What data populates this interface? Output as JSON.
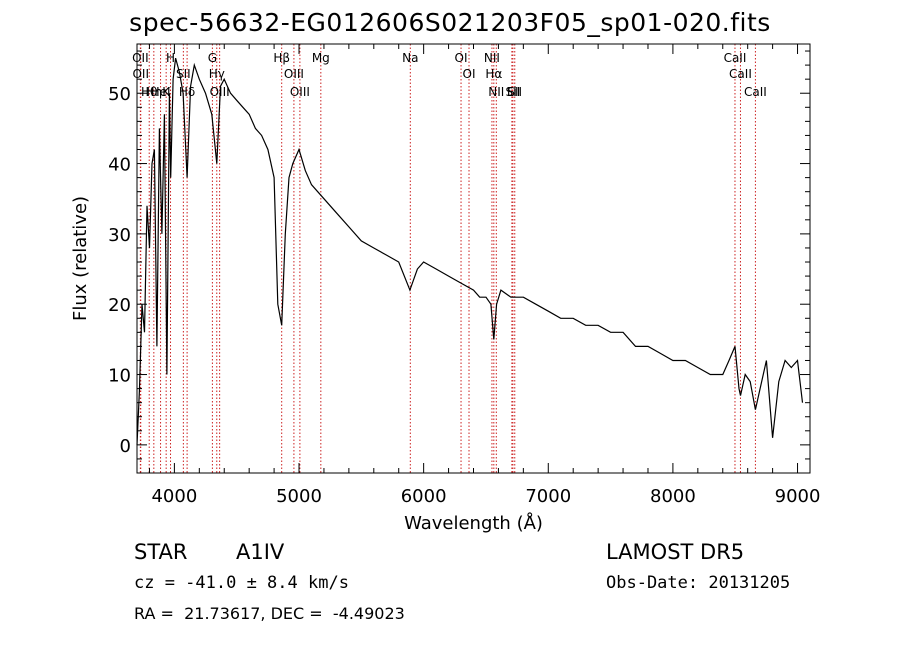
{
  "title": "spec-56632-EG012606S021203F05_sp01-020.fits",
  "info": {
    "classification": "STAR",
    "subclass": "A1IV",
    "survey": "LAMOST DR5",
    "cz": "cz = -41.0 ± 8.4 km/s",
    "obs_date": "Obs-Date: 20131205",
    "coords": "RA =  21.73617, DEC =  -4.49023"
  },
  "colors": {
    "spectrum": "#000000",
    "lines": "#cc2222",
    "axes": "#000000"
  },
  "chart_data": {
    "type": "line",
    "title": "spec-56632-EG012606S021203F05_sp01-020.fits",
    "xlabel": "Wavelength (Å)",
    "ylabel": "Flux (relative)",
    "xlim": [
      3700,
      9100
    ],
    "ylim": [
      -4,
      57
    ],
    "xticks": [
      4000,
      5000,
      6000,
      7000,
      8000,
      9000
    ],
    "yticks": [
      0,
      10,
      20,
      30,
      40,
      50
    ],
    "grid": false,
    "series": [
      {
        "x": [
          3700,
          3720,
          3740,
          3760,
          3780,
          3800,
          3820,
          3840,
          3860,
          3880,
          3900,
          3920,
          3940,
          3960,
          3970,
          3990,
          4010,
          4040,
          4070,
          4102,
          4130,
          4160,
          4200,
          4250,
          4300,
          4340,
          4370,
          4400,
          4450,
          4500,
          4550,
          4600,
          4650,
          4700,
          4750,
          4800,
          4830,
          4861,
          4890,
          4920,
          4950,
          5000,
          5050,
          5100,
          5150,
          5200,
          5300,
          5400,
          5500,
          5600,
          5700,
          5800,
          5890,
          5950,
          6000,
          6100,
          6200,
          6300,
          6400,
          6450,
          6500,
          6540,
          6563,
          6585,
          6620,
          6700,
          6800,
          6900,
          7000,
          7100,
          7200,
          7300,
          7400,
          7500,
          7600,
          7700,
          7800,
          7900,
          8000,
          8100,
          8200,
          8300,
          8400,
          8450,
          8498,
          8530,
          8542,
          8580,
          8620,
          8662,
          8700,
          8750,
          8800,
          8850,
          8900,
          8950,
          9000,
          9040
        ],
        "y": [
          0,
          8,
          20,
          16,
          34,
          28,
          40,
          42,
          14,
          45,
          30,
          47,
          10,
          50,
          38,
          52,
          55,
          53,
          50,
          38,
          51,
          54,
          52,
          50,
          47,
          40,
          51,
          52,
          50,
          49,
          48,
          47,
          45,
          44,
          42,
          38,
          20,
          17,
          30,
          38,
          40,
          42,
          39,
          37,
          36,
          35,
          33,
          31,
          29,
          28,
          27,
          26,
          22,
          25,
          26,
          25,
          24,
          23,
          22,
          21,
          21,
          20,
          15,
          20,
          22,
          21,
          21,
          20,
          19,
          18,
          18,
          17,
          17,
          16,
          16,
          14,
          14,
          13,
          12,
          12,
          11,
          10,
          10,
          12,
          14,
          8,
          7,
          10,
          9,
          5,
          8,
          12,
          1,
          9,
          12,
          11,
          12,
          6
        ]
      }
    ],
    "annotations": [
      {
        "label": "Hθ",
        "x": 3798
      },
      {
        "label": "OII",
        "x": 3727
      },
      {
        "label": "OII",
        "x": 3730
      },
      {
        "label": "Hη",
        "x": 3835
      },
      {
        "label": "HeI",
        "x": 3889
      },
      {
        "label": "K",
        "x": 3934
      },
      {
        "label": "H",
        "x": 3969
      },
      {
        "label": "SII",
        "x": 4072
      },
      {
        "label": "Hδ",
        "x": 4102
      },
      {
        "label": "OIII",
        "x": 4363
      },
      {
        "label": "Hγ",
        "x": 4340
      },
      {
        "label": "G",
        "x": 4305
      },
      {
        "label": "Hβ",
        "x": 4861
      },
      {
        "label": "OIII",
        "x": 4959
      },
      {
        "label": "OIII",
        "x": 5007
      },
      {
        "label": "Mg",
        "x": 5175
      },
      {
        "label": "Na",
        "x": 5893
      },
      {
        "label": "OI",
        "x": 6300
      },
      {
        "label": "OI",
        "x": 6364
      },
      {
        "label": "Hα",
        "x": 6563
      },
      {
        "label": "NII",
        "x": 6548
      },
      {
        "label": "NII",
        "x": 6583
      },
      {
        "label": "Li",
        "x": 6708
      },
      {
        "label": "SII",
        "x": 6716
      },
      {
        "label": "SII",
        "x": 6731
      },
      {
        "label": "CaII",
        "x": 8498
      },
      {
        "label": "CaII",
        "x": 8542
      },
      {
        "label": "CaII",
        "x": 8662
      }
    ]
  }
}
